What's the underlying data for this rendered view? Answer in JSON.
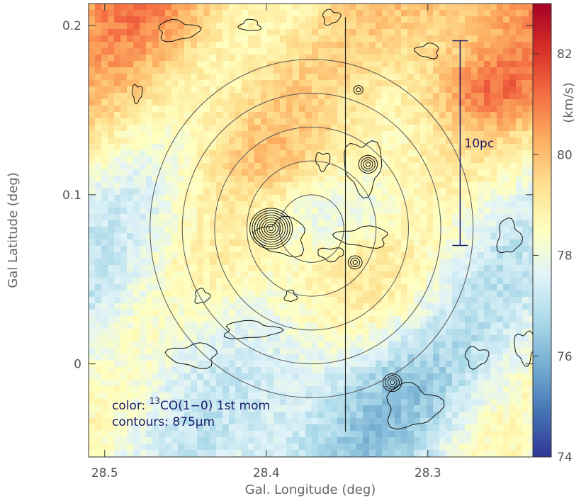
{
  "chart_data": {
    "type": "heatmap",
    "xlabel": "Gal. Longitude (deg)",
    "ylabel": "Gal Latitude (deg)",
    "xlim": [
      28.51,
      28.235
    ],
    "ylim": [
      -0.055,
      0.213
    ],
    "x_ticks": [
      {
        "value": 28.5,
        "label": "28.5"
      },
      {
        "value": 28.4,
        "label": "28.4"
      },
      {
        "value": 28.3,
        "label": "28.3"
      }
    ],
    "y_ticks": [
      {
        "value": 0.2,
        "label": "0.2"
      },
      {
        "value": 0.1,
        "label": "0.1"
      },
      {
        "value": 0.0,
        "label": "0"
      }
    ],
    "colorbar": {
      "label": "(km/s)",
      "range": [
        74,
        83
      ],
      "ticks": [
        {
          "value": 74,
          "label": "74"
        },
        {
          "value": 76,
          "label": "76"
        },
        {
          "value": 78,
          "label": "78"
        },
        {
          "value": 80,
          "label": "80"
        },
        {
          "value": 82,
          "label": "82"
        }
      ],
      "colormap": [
        "#313695",
        "#4575b4",
        "#74add1",
        "#abd9e9",
        "#e0f3f8",
        "#ffffbf",
        "#fee090",
        "#fdae61",
        "#f46d43",
        "#d73027",
        "#a50026"
      ]
    },
    "color_layer": {
      "name_prefix": "color: ",
      "superscript": "13",
      "name_rest": "CO(1−0) 1st mom"
    },
    "contour_layer": {
      "name": "contours: 875μm"
    },
    "circles": {
      "center": [
        28.372,
        0.08
      ],
      "radii_deg": [
        0.02,
        0.04,
        0.06,
        0.08,
        0.1
      ]
    },
    "vertical_line": {
      "x": 28.351,
      "y_range": [
        -0.04,
        0.205
      ]
    },
    "scale_bar": {
      "label": "10pc",
      "x": 28.28,
      "y_range": [
        0.07,
        0.191
      ]
    },
    "compact_sources": [
      {
        "l": 28.397,
        "b": 0.08,
        "levels": 9
      },
      {
        "l": 28.337,
        "b": 0.118,
        "levels": 4
      },
      {
        "l": 28.322,
        "b": -0.011,
        "levels": 4
      },
      {
        "l": 28.345,
        "b": 0.06,
        "levels": 3
      },
      {
        "l": 28.343,
        "b": 0.162,
        "levels": 2
      }
    ]
  }
}
